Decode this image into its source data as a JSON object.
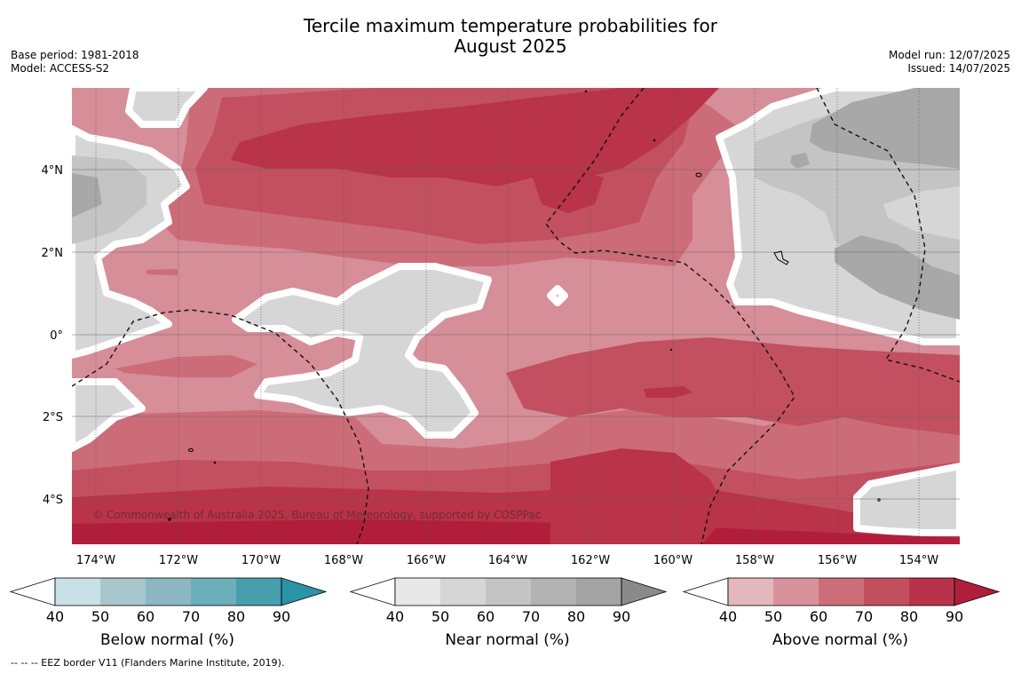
{
  "title_line1": "Tercile maximum temperature probabilities for",
  "title_line2": "August 2025",
  "base_period": "Base period: 1981-2018",
  "model": "Model: ACCESS-S2",
  "model_run": "Model run: 12/07/2025",
  "issued": "Issued: 14/07/2025",
  "copyright": "© Commonwealth of Australia 2025, Bureau of Meteorology, supported by COSPPac",
  "footer_note": "--  --  -- EEZ border V11 (Flanders Marine Institute, 2019).",
  "map": {
    "lon_labels": [
      "174°W",
      "172°W",
      "170°W",
      "168°W",
      "166°W",
      "164°W",
      "162°W",
      "160°W",
      "158°W",
      "156°W",
      "154°W"
    ],
    "lat_labels": [
      "4°N",
      "2°N",
      "0°",
      "2°S",
      "4°S"
    ]
  },
  "colorbars": [
    {
      "label": "Below normal (%)",
      "ticks": [
        "40",
        "50",
        "60",
        "70",
        "80",
        "90"
      ],
      "colors": [
        "#ffffff",
        "#c8e1e7",
        "#a7c7cd",
        "#8cb7c3",
        "#6daebb",
        "#479ead",
        "#2b93a6"
      ]
    },
    {
      "label": "Near normal (%)",
      "ticks": [
        "40",
        "50",
        "60",
        "70",
        "80",
        "90"
      ],
      "colors": [
        "#ffffff",
        "#e8e8e8",
        "#d6d6d6",
        "#c4c4c4",
        "#b3b3b3",
        "#a3a3a3",
        "#8a8a8a"
      ]
    },
    {
      "label": "Above normal (%)",
      "ticks": [
        "40",
        "50",
        "60",
        "70",
        "80",
        "90"
      ],
      "colors": [
        "#ffffff",
        "#e3b7bd",
        "#d8929b",
        "#cc6d78",
        "#c2505c",
        "#b8334a",
        "#b01e3c"
      ]
    }
  ]
}
